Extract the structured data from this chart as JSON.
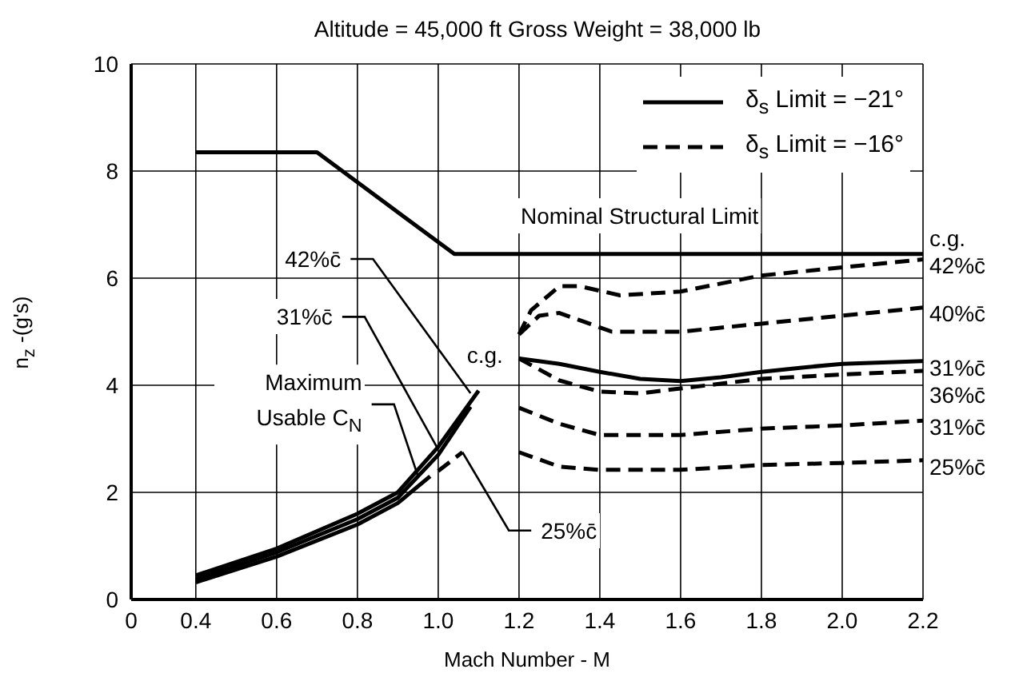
{
  "chart_data": {
    "type": "line",
    "title": "Altitude = 45,000 ft    Gross Weight = 38,000 lb",
    "xlabel": "Mach Number - M",
    "ylabel": "n$_{z}$ -(g's)",
    "xlim": [
      0.24,
      2.2
    ],
    "xticks": [
      {
        "value": 0.24,
        "label": "0"
      },
      0.4,
      0.6,
      0.8,
      {
        "value": 1,
        "label": "1.0"
      },
      1.2,
      1.4,
      1.6,
      1.8,
      {
        "value": 2,
        "label": "2.0"
      },
      2.2
    ],
    "ylim": [
      0,
      10
    ],
    "yticks": [
      0,
      2,
      4,
      6,
      8,
      10
    ],
    "grid": true,
    "legend": "top right",
    "series": [
      {
        "color": "#000000",
        "line_style": "solid",
        "x": [
          0.4,
          0.7,
          1.04,
          2.2
        ],
        "values": [
          8.35,
          8.35,
          6.45,
          6.45
        ]
      },
      {
        "color": "#000000",
        "line_style": "solid",
        "x": [
          0.4,
          0.6,
          0.8,
          0.9,
          1.0,
          1.1
        ],
        "values": [
          0.45,
          0.95,
          1.6,
          2.0,
          2.85,
          3.9
        ]
      },
      {
        "color": "#000000",
        "line_style": "solid",
        "x": [
          0.4,
          0.6,
          0.8,
          0.9,
          1.0,
          1.08
        ],
        "values": [
          0.38,
          0.88,
          1.5,
          1.9,
          2.7,
          3.6
        ]
      },
      {
        "color": "#000000",
        "line_style": "solid",
        "x": [
          0.4,
          0.6,
          0.8,
          0.9,
          0.98
        ],
        "values": [
          0.32,
          0.8,
          1.4,
          1.8,
          2.3
        ]
      },
      {
        "color": "#000000",
        "line_style": "dashed",
        "x": [
          1.0,
          1.06
        ],
        "values": [
          2.4,
          2.75
        ]
      },
      {
        "name": "δ$_{s}$ Limit = −21°",
        "color": "#000000",
        "line_style": "solid",
        "x": [
          1.2,
          1.3,
          1.4,
          1.5,
          1.6,
          1.7,
          1.8,
          1.9,
          2.0,
          2.2
        ],
        "values": [
          4.5,
          4.4,
          4.25,
          4.12,
          4.08,
          4.15,
          4.25,
          4.33,
          4.4,
          4.45
        ]
      },
      {
        "name": "δ$_{s}$ Limit = −16°",
        "color": "#000000",
        "line_style": "dashed",
        "x": [
          1.2,
          1.23,
          1.3,
          1.35,
          1.45,
          1.6,
          1.8,
          2.0,
          2.2
        ],
        "values": [
          4.95,
          5.4,
          5.85,
          5.85,
          5.68,
          5.75,
          6.05,
          6.2,
          6.35
        ]
      },
      {
        "color": "#000000",
        "line_style": "dashed",
        "x": [
          1.2,
          1.25,
          1.3,
          1.43,
          1.6,
          1.8,
          2.0,
          2.2
        ],
        "values": [
          4.95,
          5.3,
          5.35,
          5.0,
          5.0,
          5.15,
          5.3,
          5.45
        ]
      },
      {
        "color": "#000000",
        "line_style": "dashed",
        "x": [
          1.2,
          1.3,
          1.4,
          1.5,
          1.6,
          1.8,
          2.0,
          2.2
        ],
        "values": [
          4.5,
          4.09,
          3.88,
          3.85,
          3.94,
          4.12,
          4.2,
          4.27
        ]
      },
      {
        "color": "#000000",
        "line_style": "dashed",
        "x": [
          1.2,
          1.3,
          1.4,
          1.6,
          1.8,
          2.0,
          2.2
        ],
        "values": [
          3.58,
          3.28,
          3.07,
          3.07,
          3.19,
          3.25,
          3.34
        ]
      },
      {
        "color": "#000000",
        "line_style": "dashed",
        "x": [
          1.2,
          1.3,
          1.4,
          1.6,
          1.8,
          2.0,
          2.2
        ],
        "values": [
          2.75,
          2.48,
          2.42,
          2.42,
          2.51,
          2.55,
          2.6
        ]
      }
    ],
    "annotations": [
      {
        "text": "Nominal Structural Limit",
        "x": 1.55,
        "y": 6.45
      },
      {
        "text": "42%c̄",
        "x": 1.08,
        "y": 3.85
      },
      {
        "text": "31%c̄",
        "x": 1.0,
        "y": 2.8
      },
      {
        "text": "Maximum Usable C$_{N}$",
        "x": 0.95,
        "y": 2.3
      },
      {
        "text": "c.g.",
        "x": 1.2,
        "y": 4.5
      },
      {
        "text": "25%c̄",
        "x": 1.06,
        "y": 2.75
      },
      "c.g.",
      {
        "text": "42%c̄",
        "x": 2.2,
        "y": 6.35
      },
      {
        "text": "40%c̄",
        "x": 2.2,
        "y": 5.45
      },
      {
        "text": "31%c̄",
        "x": 2.2,
        "y": 4.45
      },
      {
        "text": "36%c̄",
        "x": 2.2,
        "y": 4.27
      },
      {
        "text": "31%c̄",
        "x": 2.2,
        "y": 3.34
      },
      {
        "text": "25%c̄",
        "x": 2.2,
        "y": 2.6
      }
    ]
  }
}
